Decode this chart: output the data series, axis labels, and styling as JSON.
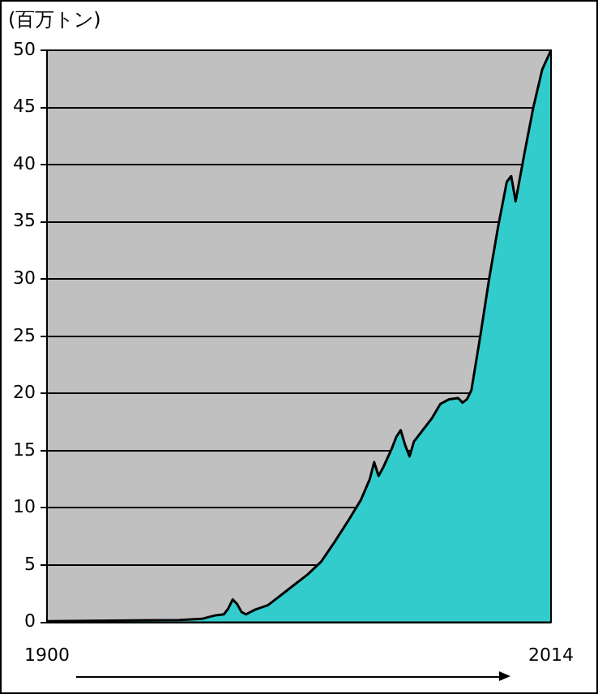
{
  "chart_data": {
    "type": "area",
    "ylabel": "(百万トン)",
    "x": [
      1900,
      1930,
      1935,
      1938,
      1940,
      1941,
      1942,
      1943,
      1944,
      1945,
      1947,
      1950,
      1953,
      1956,
      1959,
      1962,
      1965,
      1968,
      1971,
      1973,
      1974,
      1975,
      1976,
      1978,
      1979,
      1980,
      1981,
      1982,
      1983,
      1985,
      1987,
      1989,
      1991,
      1993,
      1994,
      1995,
      1996,
      1998,
      2000,
      2002,
      2004,
      2005,
      2006,
      2008,
      2010,
      2012,
      2014
    ],
    "series": [
      {
        "color": "#33cccc",
        "values": [
          0.1,
          0.2,
          0.3,
          0.6,
          0.7,
          1.2,
          2.0,
          1.6,
          0.9,
          0.7,
          1.1,
          1.5,
          2.4,
          3.3,
          4.2,
          5.3,
          7,
          8.8,
          10.7,
          12.5,
          14.0,
          12.8,
          13.5,
          15.2,
          16.2,
          16.8,
          15.5,
          14.5,
          15.8,
          16.8,
          17.8,
          19.1,
          19.5,
          19.6,
          19.2,
          19.5,
          20.3,
          25,
          30,
          34.5,
          38.5,
          39.0,
          36.8,
          41,
          45,
          48.3,
          50
        ]
      }
    ],
    "xlim": [
      1900,
      2014
    ],
    "xticks": [
      1900,
      2014
    ],
    "ylim": [
      0,
      50
    ],
    "yticks": [
      0,
      5,
      10,
      15,
      20,
      25,
      30,
      35,
      40,
      45,
      50
    ],
    "grid": "y",
    "legend": false
  }
}
